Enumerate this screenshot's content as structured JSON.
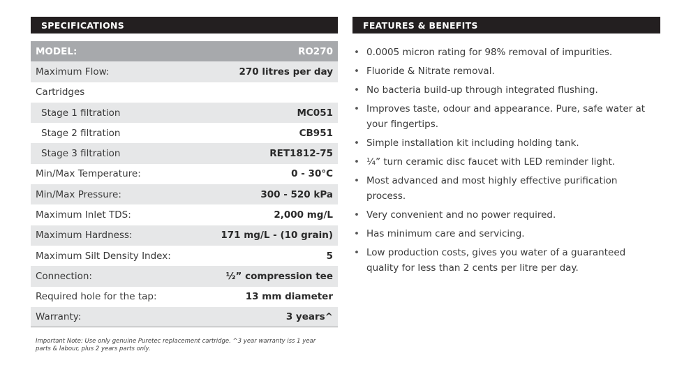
{
  "specifications": {
    "title": "SPECIFICATIONS",
    "table": {
      "header": [
        "MODEL:",
        "RO270"
      ],
      "rows": [
        [
          "Maximum Flow:",
          "270 litres per day"
        ],
        [
          "Cartridges",
          ""
        ],
        [
          "Stage 1 filtration",
          "MC051"
        ],
        [
          "Stage 2 filtration",
          "CB951"
        ],
        [
          "Stage 3 filtration",
          "RET1812-75"
        ],
        [
          "Min/Max Temperature:",
          "0 - 30°C"
        ],
        [
          "Min/Max Pressure:",
          "300 - 520 kPa"
        ],
        [
          "Maximum Inlet TDS:",
          "2,000 mg/L"
        ],
        [
          "Maximum Hardness:",
          "171 mg/L - (10 grain)"
        ],
        [
          "Maximum Silt Density Index:",
          "5"
        ],
        [
          "Connection:",
          "½” compression tee"
        ],
        [
          "Required hole for the tap:",
          "13 mm diameter"
        ],
        [
          "Warranty:",
          "3 years^"
        ]
      ]
    },
    "note": "Important Note: Use only genuine Puretec replacement cartridge. ^3 year warranty iss 1 year parts & labour, plus 2 years parts only."
  },
  "features": {
    "title": "FEATURES & BENEFITS",
    "items": [
      "0.0005 micron rating for 98% removal of impurities.",
      "Fluoride & Nitrate removal.",
      "No bacteria build-up through integrated flushing.",
      "Improves taste, odour and appearance. Pure, safe water at your fingertips.",
      "Simple installation kit including holding tank.",
      "¼” turn ceramic disc faucet with LED reminder light.",
      "Most advanced and most highly effective purification process.",
      "Very convenient and no power required.",
      "Has minimum care and servicing.",
      "Low production costs, gives you water of a guaranteed quality for less than 2 cents per litre per day."
    ]
  }
}
